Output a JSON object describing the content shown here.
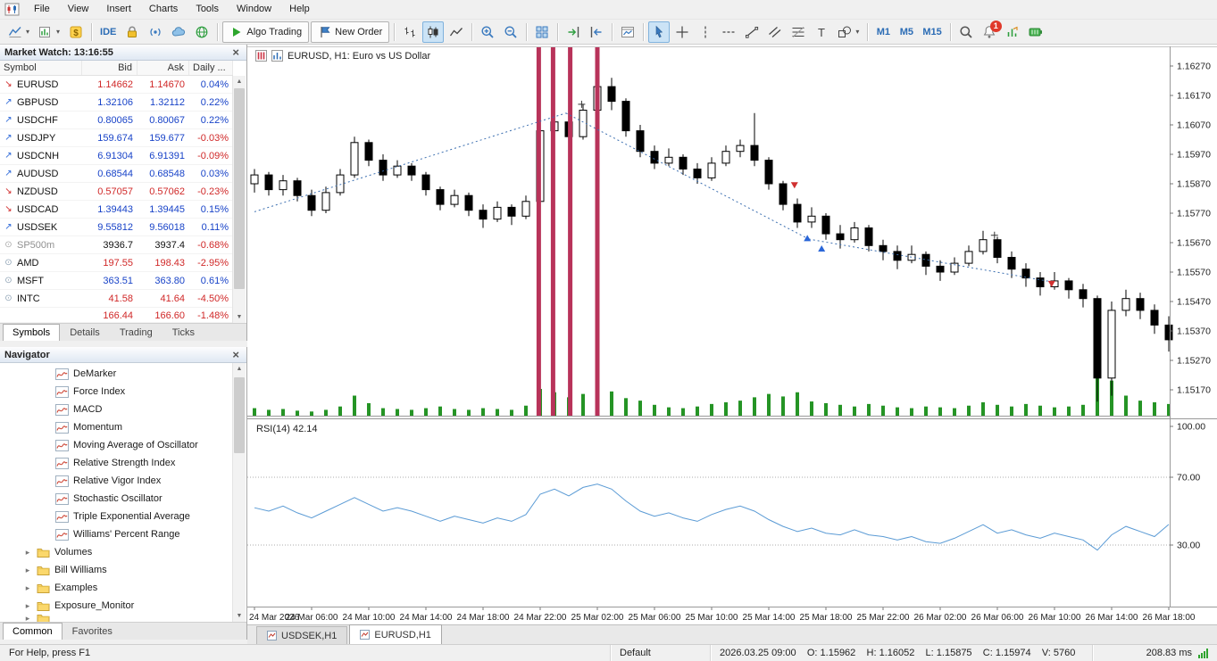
{
  "menu": {
    "items": [
      "File",
      "View",
      "Insert",
      "Charts",
      "Tools",
      "Window",
      "Help"
    ]
  },
  "toolbar": {
    "buttons": [
      {
        "name": "chart-window",
        "icon": "line-chart",
        "dropdown": true
      },
      {
        "name": "new-chart",
        "icon": "new-chart",
        "dropdown": true
      },
      {
        "name": "profiles",
        "icon": "dollar"
      },
      {
        "type": "sep"
      },
      {
        "name": "metaeditor",
        "label": "IDE"
      },
      {
        "name": "lock",
        "icon": "lock"
      },
      {
        "name": "mql5-account",
        "icon": "id"
      },
      {
        "name": "cloud",
        "icon": "cloud"
      },
      {
        "name": "community",
        "icon": "globe"
      },
      {
        "type": "sep"
      },
      {
        "name": "algo-trading",
        "label": "Algo Trading",
        "icon": "play",
        "framed": true
      },
      {
        "name": "new-order",
        "label": "New Order",
        "icon": "flag",
        "framed": true
      },
      {
        "type": "sep"
      },
      {
        "name": "bar-chart-mode",
        "icon": "bars"
      },
      {
        "name": "candle-chart-mode",
        "icon": "candles",
        "active": true
      },
      {
        "name": "line-chart-mode",
        "icon": "linemode"
      },
      {
        "type": "sep"
      },
      {
        "name": "zoom-in",
        "icon": "zoom-in"
      },
      {
        "name": "zoom-out",
        "icon": "zoom-out"
      },
      {
        "type": "sep"
      },
      {
        "name": "tile-windows",
        "icon": "grid"
      },
      {
        "type": "sep"
      },
      {
        "name": "auto-scroll",
        "icon": "autoscroll"
      },
      {
        "name": "chart-shift",
        "icon": "shift"
      },
      {
        "type": "sep"
      },
      {
        "name": "strategy-tester",
        "icon": "tester"
      },
      {
        "type": "sep"
      },
      {
        "name": "cursor",
        "icon": "cursor",
        "active": true
      },
      {
        "name": "crosshair",
        "icon": "crosshair"
      },
      {
        "name": "vertical-line",
        "icon": "vline"
      },
      {
        "name": "horizontal-line",
        "icon": "hline"
      },
      {
        "name": "trendline",
        "icon": "trend"
      },
      {
        "name": "equidistant-channel",
        "icon": "channel"
      },
      {
        "name": "fibonacci",
        "icon": "fibo"
      },
      {
        "name": "text-label",
        "icon": "text"
      },
      {
        "name": "shapes",
        "icon": "shapes",
        "dropdown": true
      },
      {
        "type": "sep"
      },
      {
        "name": "timeframe-m1",
        "label": "M1",
        "tf": true
      },
      {
        "name": "timeframe-m5",
        "label": "M5",
        "tf": true
      },
      {
        "name": "timeframe-m15",
        "label": "M15",
        "tf": true
      },
      {
        "type": "sep"
      },
      {
        "name": "search",
        "icon": "search"
      },
      {
        "name": "notifications",
        "icon": "bell",
        "badge": "1"
      },
      {
        "name": "market-depth",
        "icon": "depth"
      },
      {
        "name": "connection",
        "icon": "battery"
      }
    ]
  },
  "market_watch": {
    "title": "Market Watch: 13:16:55",
    "columns": [
      "Symbol",
      "Bid",
      "Ask",
      "Daily ..."
    ],
    "rows": [
      {
        "symbol": "EURUSD",
        "bid": "1.14662",
        "ask": "1.14670",
        "daily": "0.04%",
        "arrow": "down",
        "price_color": "red",
        "daily_color": "blue"
      },
      {
        "symbol": "GBPUSD",
        "bid": "1.32106",
        "ask": "1.32112",
        "daily": "0.22%",
        "arrow": "up",
        "price_color": "blue",
        "daily_color": "blue"
      },
      {
        "symbol": "USDCHF",
        "bid": "0.80065",
        "ask": "0.80067",
        "daily": "0.22%",
        "arrow": "up",
        "price_color": "blue",
        "daily_color": "blue"
      },
      {
        "symbol": "USDJPY",
        "bid": "159.674",
        "ask": "159.677",
        "daily": "-0.03%",
        "arrow": "up",
        "price_color": "blue",
        "daily_color": "red"
      },
      {
        "symbol": "USDCNH",
        "bid": "6.91304",
        "ask": "6.91391",
        "daily": "-0.09%",
        "arrow": "up",
        "price_color": "blue",
        "daily_color": "red"
      },
      {
        "symbol": "AUDUSD",
        "bid": "0.68544",
        "ask": "0.68548",
        "daily": "0.03%",
        "arrow": "up",
        "price_color": "blue",
        "daily_color": "blue"
      },
      {
        "symbol": "NZDUSD",
        "bid": "0.57057",
        "ask": "0.57062",
        "daily": "-0.23%",
        "arrow": "down",
        "price_color": "red",
        "daily_color": "red"
      },
      {
        "symbol": "USDCAD",
        "bid": "1.39443",
        "ask": "1.39445",
        "daily": "0.15%",
        "arrow": "down",
        "price_color": "blue",
        "daily_color": "blue"
      },
      {
        "symbol": "USDSEK",
        "bid": "9.55812",
        "ask": "9.56018",
        "daily": "0.11%",
        "arrow": "up",
        "price_color": "blue",
        "daily_color": "blue"
      },
      {
        "symbol": "SP500m",
        "bid": "3936.7",
        "ask": "3937.4",
        "daily": "-0.68%",
        "arrow": "stockgray",
        "price_color": "black",
        "daily_color": "red",
        "symbol_color": "gray"
      },
      {
        "symbol": "AMD",
        "bid": "197.55",
        "ask": "198.43",
        "daily": "-2.95%",
        "arrow": "stock",
        "price_color": "red",
        "daily_color": "red"
      },
      {
        "symbol": "MSFT",
        "bid": "363.51",
        "ask": "363.80",
        "daily": "0.61%",
        "arrow": "stock",
        "price_color": "blue",
        "daily_color": "blue"
      },
      {
        "symbol": "INTC",
        "bid": "41.58",
        "ask": "41.64",
        "daily": "-4.50%",
        "arrow": "stock",
        "price_color": "red",
        "daily_color": "red"
      },
      {
        "symbol": "",
        "bid": "166.44",
        "ask": "166.60",
        "daily": "-1.48%",
        "arrow": "",
        "price_color": "red",
        "daily_color": "red",
        "partial": true
      }
    ],
    "tabs": [
      "Symbols",
      "Details",
      "Trading",
      "Ticks"
    ],
    "active_tab": "Symbols"
  },
  "navigator": {
    "title": "Navigator",
    "items": [
      {
        "label": "DeMarker",
        "type": "indicator"
      },
      {
        "label": "Force Index",
        "type": "indicator"
      },
      {
        "label": "MACD",
        "type": "indicator"
      },
      {
        "label": "Momentum",
        "type": "indicator"
      },
      {
        "label": "Moving Average of Oscillator",
        "type": "indicator"
      },
      {
        "label": "Relative Strength Index",
        "type": "indicator"
      },
      {
        "label": "Relative Vigor Index",
        "type": "indicator"
      },
      {
        "label": "Stochastic Oscillator",
        "type": "indicator"
      },
      {
        "label": "Triple Exponential Average",
        "type": "indicator"
      },
      {
        "label": "Williams' Percent Range",
        "type": "indicator"
      },
      {
        "label": "Volumes",
        "type": "folder"
      },
      {
        "label": "Bill Williams",
        "type": "folder"
      },
      {
        "label": "Examples",
        "type": "folder"
      },
      {
        "label": "Exposure_Monitor",
        "type": "folder"
      },
      {
        "label": "",
        "type": "folder-partial"
      }
    ],
    "tabs": [
      "Common",
      "Favorites"
    ],
    "active_tab": "Common"
  },
  "chart": {
    "title": "EURUSD, H1: Euro vs US Dollar",
    "tabs": [
      {
        "label": "USDSEK,H1",
        "active": false
      },
      {
        "label": "EURUSD,H1",
        "active": true
      }
    ]
  },
  "chart_data": {
    "type": "candlestick",
    "symbol": "EURUSD",
    "timeframe": "H1",
    "price_axis": {
      "top_value": 1.1627,
      "step": 0.001,
      "labels": [
        "1.16270",
        "1.16170",
        "1.16070",
        "1.15970",
        "1.15870",
        "1.15770",
        "1.15670",
        "1.15570",
        "1.15470",
        "1.15370",
        "1.15270",
        "1.15170"
      ]
    },
    "time_labels": [
      "24 Mar 2026",
      "24 Mar 06:00",
      "24 Mar 10:00",
      "24 Mar 14:00",
      "24 Mar 18:00",
      "24 Mar 22:00",
      "25 Mar 02:00",
      "25 Mar 06:00",
      "25 Mar 10:00",
      "25 Mar 14:00",
      "25 Mar 18:00",
      "25 Mar 22:00",
      "26 Mar 02:00",
      "26 Mar 06:00",
      "26 Mar 10:00",
      "26 Mar 14:00",
      "26 Mar 18:00"
    ],
    "candles": [
      [
        1.1587,
        1.1592,
        1.1584,
        1.159
      ],
      [
        1.159,
        1.1591,
        1.1583,
        1.1585
      ],
      [
        1.1585,
        1.159,
        1.1583,
        1.1588
      ],
      [
        1.1588,
        1.1589,
        1.1581,
        1.1583
      ],
      [
        1.1583,
        1.1585,
        1.1576,
        1.1578
      ],
      [
        1.1578,
        1.1586,
        1.1577,
        1.1584
      ],
      [
        1.1584,
        1.1592,
        1.1583,
        1.159
      ],
      [
        1.159,
        1.1603,
        1.1589,
        1.1601
      ],
      [
        1.1601,
        1.1602,
        1.1593,
        1.1595
      ],
      [
        1.1595,
        1.1597,
        1.1588,
        1.159
      ],
      [
        1.159,
        1.1595,
        1.1589,
        1.1593
      ],
      [
        1.1593,
        1.1594,
        1.1588,
        1.159
      ],
      [
        1.159,
        1.1591,
        1.1583,
        1.1585
      ],
      [
        1.1585,
        1.1586,
        1.1578,
        1.158
      ],
      [
        1.158,
        1.1585,
        1.1579,
        1.1583
      ],
      [
        1.1583,
        1.1584,
        1.1576,
        1.1578
      ],
      [
        1.1578,
        1.158,
        1.1572,
        1.1575
      ],
      [
        1.1575,
        1.1581,
        1.1574,
        1.1579
      ],
      [
        1.1579,
        1.158,
        1.1573,
        1.1576
      ],
      [
        1.1576,
        1.1583,
        1.1575,
        1.1581
      ],
      [
        1.1581,
        1.1607,
        1.158,
        1.1605
      ],
      [
        1.1605,
        1.1611,
        1.1602,
        1.1608
      ],
      [
        1.1608,
        1.1609,
        1.16,
        1.1603
      ],
      [
        1.1603,
        1.1614,
        1.1602,
        1.1612
      ],
      [
        1.1612,
        1.1623,
        1.161,
        1.162
      ],
      [
        1.162,
        1.1623,
        1.1612,
        1.1615
      ],
      [
        1.1615,
        1.1616,
        1.1603,
        1.1605
      ],
      [
        1.1605,
        1.1607,
        1.1596,
        1.1598
      ],
      [
        1.1598,
        1.16,
        1.1592,
        1.1594
      ],
      [
        1.1594,
        1.1599,
        1.1593,
        1.1596
      ],
      [
        1.1596,
        1.1597,
        1.159,
        1.1592
      ],
      [
        1.1592,
        1.1594,
        1.1587,
        1.1589
      ],
      [
        1.1589,
        1.1596,
        1.1588,
        1.1594
      ],
      [
        1.1594,
        1.16,
        1.1593,
        1.1598
      ],
      [
        1.1598,
        1.1602,
        1.1596,
        1.16
      ],
      [
        1.16,
        1.1611,
        1.1593,
        1.1595
      ],
      [
        1.1595,
        1.1596,
        1.1585,
        1.1587
      ],
      [
        1.1587,
        1.1588,
        1.1578,
        1.158
      ],
      [
        1.158,
        1.1582,
        1.1572,
        1.1574
      ],
      [
        1.1574,
        1.1579,
        1.1572,
        1.1576
      ],
      [
        1.1576,
        1.1577,
        1.1568,
        1.157
      ],
      [
        1.157,
        1.1573,
        1.1565,
        1.1568
      ],
      [
        1.1568,
        1.1574,
        1.1567,
        1.1572
      ],
      [
        1.1572,
        1.1573,
        1.1564,
        1.1566
      ],
      [
        1.1566,
        1.1568,
        1.1561,
        1.1564
      ],
      [
        1.1564,
        1.1566,
        1.1558,
        1.1561
      ],
      [
        1.1561,
        1.1566,
        1.156,
        1.1563
      ],
      [
        1.1563,
        1.1564,
        1.1556,
        1.1559
      ],
      [
        1.1559,
        1.1561,
        1.1554,
        1.1557
      ],
      [
        1.1557,
        1.1562,
        1.1556,
        1.156
      ],
      [
        1.156,
        1.1566,
        1.1559,
        1.1564
      ],
      [
        1.1564,
        1.1571,
        1.1563,
        1.1568
      ],
      [
        1.1568,
        1.1569,
        1.156,
        1.1562
      ],
      [
        1.1562,
        1.1564,
        1.1555,
        1.1558
      ],
      [
        1.1558,
        1.156,
        1.1552,
        1.1555
      ],
      [
        1.1555,
        1.1557,
        1.1549,
        1.1552
      ],
      [
        1.1552,
        1.1557,
        1.1551,
        1.1554
      ],
      [
        1.1554,
        1.1555,
        1.1548,
        1.1551
      ],
      [
        1.1551,
        1.1553,
        1.1545,
        1.1548
      ],
      [
        1.1548,
        1.1549,
        1.1513,
        1.1521
      ],
      [
        1.1521,
        1.1547,
        1.1515,
        1.1544
      ],
      [
        1.1544,
        1.1551,
        1.1542,
        1.1548
      ],
      [
        1.1548,
        1.155,
        1.1541,
        1.1544
      ],
      [
        1.1544,
        1.1546,
        1.1536,
        1.1539
      ],
      [
        1.1539,
        1.1542,
        1.153,
        1.1534
      ]
    ],
    "volumes": [
      900,
      700,
      800,
      600,
      500,
      700,
      1100,
      2400,
      1500,
      900,
      800,
      700,
      900,
      1100,
      800,
      700,
      900,
      800,
      700,
      1200,
      3200,
      2800,
      2200,
      2600,
      3400,
      2900,
      2100,
      1800,
      1300,
      1000,
      900,
      1100,
      1400,
      1600,
      1800,
      2200,
      2600,
      2300,
      2800,
      1700,
      1500,
      1300,
      1100,
      1400,
      1200,
      1000,
      900,
      1100,
      1000,
      900,
      1200,
      1600,
      1300,
      1100,
      1400,
      1200,
      1000,
      1100,
      1300,
      4800,
      4200,
      2400,
      1800,
      1600,
      1400
    ],
    "rsi": {
      "label": "RSI(14) 42.14",
      "period": 14,
      "value": 42.14,
      "levels": [
        {
          "label": "100.00",
          "value": 100
        },
        {
          "label": "70.00",
          "value": 70
        },
        {
          "label": "30.00",
          "value": 30
        }
      ],
      "values": [
        52,
        50,
        53,
        49,
        46,
        50,
        54,
        58,
        54,
        50,
        52,
        50,
        47,
        44,
        47,
        45,
        43,
        46,
        44,
        48,
        60,
        63,
        59,
        64,
        66,
        63,
        56,
        50,
        47,
        49,
        46,
        44,
        48,
        51,
        53,
        50,
        45,
        41,
        38,
        40,
        37,
        36,
        39,
        36,
        35,
        33,
        35,
        32,
        31,
        34,
        38,
        42,
        37,
        39,
        36,
        34,
        37,
        35,
        33,
        27,
        36,
        41,
        38,
        35,
        42.14
      ]
    },
    "vline_indices": [
      19.9,
      20.9,
      22.1,
      24.0
    ],
    "trendlines": [
      {
        "from": [
          0,
          1.15775
        ],
        "to": [
          21.8,
          1.1611
        ]
      },
      {
        "from": [
          21.8,
          1.1611
        ],
        "to": [
          38.8,
          1.15682
        ]
      },
      {
        "from": [
          38.8,
          1.15682
        ],
        "to": [
          55.8,
          1.15537
        ]
      }
    ],
    "markers": [
      {
        "type": "sell",
        "index": 37.8,
        "price": 1.1586
      },
      {
        "type": "sell",
        "index": 55.8,
        "price": 1.15525
      },
      {
        "type": "buy",
        "index": 38.7,
        "price": 1.1569
      },
      {
        "type": "buy",
        "index": 39.7,
        "price": 1.15655
      },
      {
        "type": "cross",
        "index": 22.9,
        "price": 1.1614
      },
      {
        "type": "cross",
        "index": 51.8,
        "price": 1.15695
      }
    ],
    "colors": {
      "vline": "#b8335a",
      "volume": "#259425",
      "rsi_line": "#5b9bd5",
      "trendline": "#3c6fb0",
      "bull": "#ffffff",
      "bear": "#000000"
    }
  },
  "status_bar": {
    "help": "For Help, press F1",
    "profile": "Default",
    "candle_info": "2026.03.25 09:00    O: 1.15962    H: 1.16052    L: 1.15875    C: 1.15974    V: 5760",
    "latency": "208.83 ms"
  },
  "ui": {
    "close": "×",
    "scroll_up": "▲",
    "scroll_down": "▼",
    "tree_collapsed": "▸",
    "dropdown": "▾",
    "up_glyph": "↗",
    "down_glyph": "↘",
    "stock_glyph": "⊙"
  }
}
